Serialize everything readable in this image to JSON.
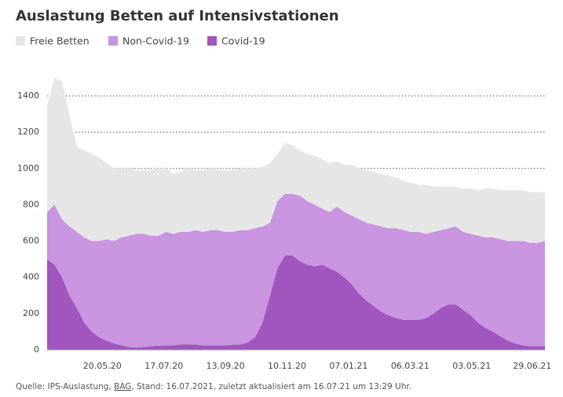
{
  "chart_data": {
    "type": "stacked_area",
    "title": "Auslastung Betten auf Intensivstationen",
    "x": [
      "29.03.20",
      "05.04.20",
      "12.04.20",
      "19.04.20",
      "26.04.20",
      "03.05.20",
      "10.05.20",
      "17.05.20",
      "24.05.20",
      "31.05.20",
      "07.06.20",
      "14.06.20",
      "21.06.20",
      "28.06.20",
      "05.07.20",
      "12.07.20",
      "19.07.20",
      "26.07.20",
      "02.08.20",
      "09.08.20",
      "16.08.20",
      "23.08.20",
      "30.08.20",
      "06.09.20",
      "13.09.20",
      "20.09.20",
      "27.09.20",
      "04.10.20",
      "11.10.20",
      "18.10.20",
      "25.10.20",
      "01.11.20",
      "08.11.20",
      "15.11.20",
      "22.11.20",
      "29.11.20",
      "06.12.20",
      "13.12.20",
      "20.12.20",
      "27.12.20",
      "03.01.21",
      "10.01.21",
      "17.01.21",
      "24.01.21",
      "31.01.21",
      "07.02.21",
      "14.02.21",
      "21.02.21",
      "28.02.21",
      "07.03.21",
      "14.03.21",
      "21.03.21",
      "28.03.21",
      "04.04.21",
      "11.04.21",
      "18.04.21",
      "25.04.21",
      "02.05.21",
      "09.05.21",
      "16.05.21",
      "23.05.21",
      "30.05.21",
      "06.06.21",
      "13.06.21",
      "20.06.21",
      "27.06.21",
      "04.07.21",
      "11.07.21"
    ],
    "series": [
      {
        "name": "Freie Betten",
        "color": "#e6e6e6",
        "values": [
          590,
          700,
          760,
          620,
          470,
          480,
          480,
          460,
          420,
          400,
          380,
          370,
          350,
          350,
          360,
          370,
          350,
          330,
          330,
          350,
          330,
          340,
          340,
          330,
          340,
          340,
          340,
          340,
          330,
          330,
          330,
          260,
          280,
          270,
          250,
          260,
          270,
          270,
          270,
          250,
          260,
          280,
          280,
          290,
          290,
          290,
          290,
          280,
          270,
          270,
          260,
          270,
          250,
          240,
          230,
          220,
          240,
          250,
          250,
          270,
          270,
          270,
          280,
          280,
          280,
          280,
          280,
          270
        ]
      },
      {
        "name": "Non-Covid-19",
        "color": "#c994e0",
        "values": [
          260,
          330,
          320,
          380,
          420,
          470,
          500,
          530,
          560,
          565,
          595,
          615,
          628,
          625,
          610,
          608,
          625,
          615,
          620,
          620,
          632,
          625,
          635,
          635,
          625,
          622,
          630,
          620,
          600,
          530,
          400,
          370,
          340,
          340,
          360,
          350,
          340,
          310,
          310,
          360,
          360,
          380,
          410,
          430,
          450,
          470,
          480,
          495,
          495,
          485,
          485,
          465,
          450,
          430,
          420,
          430,
          430,
          450,
          480,
          500,
          520,
          535,
          550,
          565,
          575,
          570,
          570,
          580
        ]
      },
      {
        "name": "Covid-19",
        "color": "#a155bf",
        "values": [
          500,
          470,
          400,
          300,
          230,
          150,
          100,
          70,
          50,
          35,
          25,
          15,
          12,
          15,
          20,
          22,
          25,
          25,
          30,
          30,
          28,
          25,
          25,
          25,
          25,
          28,
          30,
          40,
          70,
          150,
          300,
          450,
          520,
          520,
          490,
          470,
          460,
          470,
          450,
          430,
          400,
          360,
          310,
          270,
          240,
          210,
          190,
          175,
          165,
          165,
          165,
          175,
          200,
          230,
          250,
          250,
          220,
          190,
          150,
          120,
          100,
          75,
          50,
          35,
          25,
          20,
          20,
          20
        ]
      }
    ],
    "xlim": [
      "29.03.20",
      "11.07.21"
    ],
    "xticks": [
      "20.05.20",
      "17.07.20",
      "13.09.20",
      "10.11.20",
      "07.01.21",
      "06.03.21",
      "03.05.21",
      "29.06.21"
    ],
    "ylim": [
      0,
      1580
    ],
    "yticks": [
      0,
      200,
      400,
      600,
      800,
      1000,
      1200,
      1400
    ],
    "grid": true,
    "legend": "top-left",
    "source": {
      "prefix": "Quelle: IPS-Auslastung, ",
      "link": "BAG",
      "suffix": ", Stand: 16.07.2021, zuletzt aktualisiert am 16.07.21 um 13:29 Uhr."
    }
  }
}
